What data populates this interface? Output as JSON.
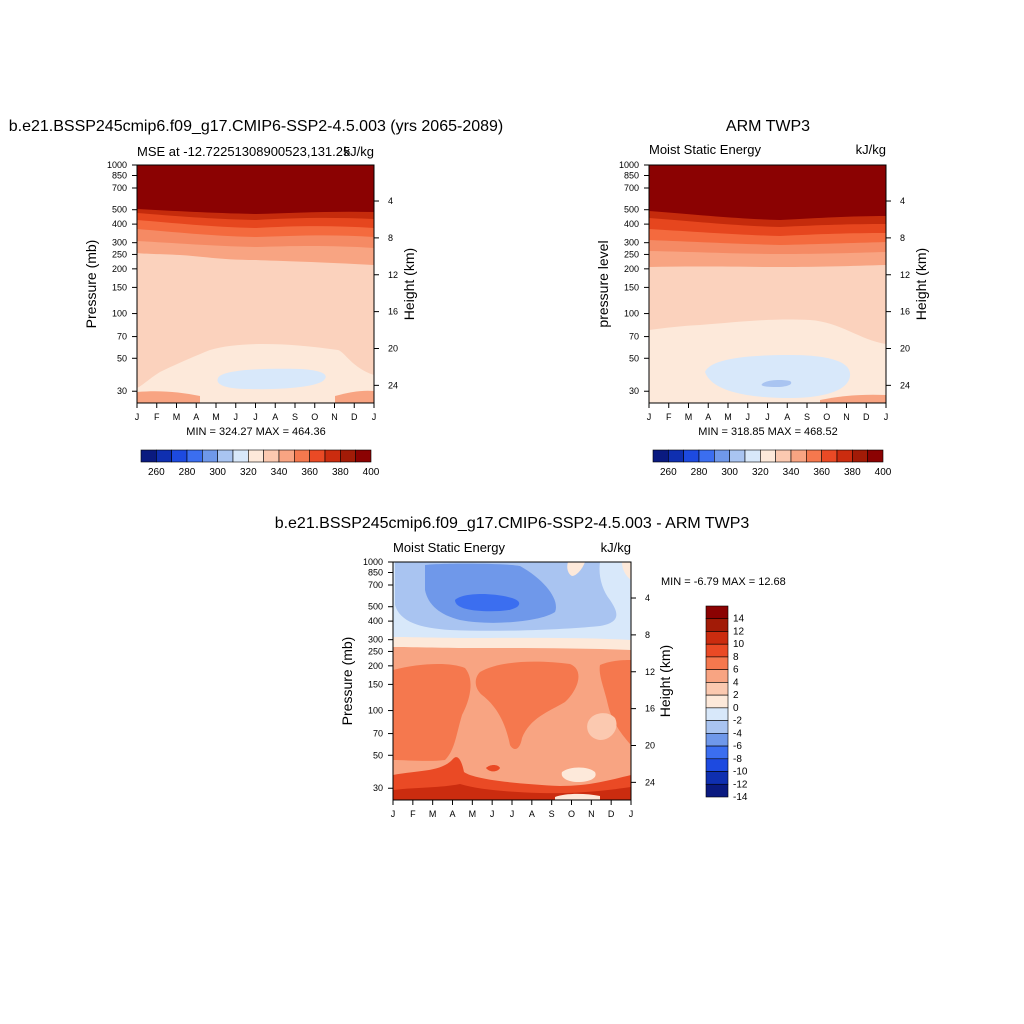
{
  "months": [
    "J",
    "F",
    "M",
    "A",
    "M",
    "J",
    "J",
    "A",
    "S",
    "O",
    "N",
    "D",
    "J"
  ],
  "pressure_ticks": [
    30,
    50,
    70,
    100,
    150,
    200,
    250,
    300,
    400,
    500,
    700,
    850,
    1000
  ],
  "height_ticks": [
    4,
    8,
    12,
    16,
    20,
    24
  ],
  "chart_data": [
    {
      "type": "heatmap",
      "title": "b.e21.BSSP245cmip6.f09_g17.CMIP6-SSP2-4.5.003 (yrs 2065-2089)",
      "left_label": "MSE at -12.72251308900523,131.25",
      "right_label": "kJ/kg",
      "ylabel": "Pressure (mb)",
      "y2label": "Height (km)",
      "ylim": [
        1000,
        25
      ],
      "stats": "MIN = 324.27 MAX = 464.36",
      "colorbar_ticks": [
        "260",
        "280",
        "300",
        "320",
        "340",
        "360",
        "380",
        "400"
      ],
      "colorbar_orientation": "horizontal"
    },
    {
      "type": "heatmap",
      "title": "ARM TWP3",
      "left_label": "Moist Static Energy",
      "right_label": "kJ/kg",
      "ylabel": "pressure level",
      "y2label": "Height (km)",
      "ylim": [
        1000,
        25
      ],
      "stats": "MIN = 318.85 MAX = 468.52",
      "colorbar_ticks": [
        "260",
        "280",
        "300",
        "320",
        "340",
        "360",
        "380",
        "400"
      ],
      "colorbar_orientation": "horizontal"
    },
    {
      "type": "heatmap",
      "title": "b.e21.BSSP245cmip6.f09_g17.CMIP6-SSP2-4.5.003 - ARM TWP3",
      "left_label": "Moist Static Energy",
      "right_label": "kJ/kg",
      "ylabel": "Pressure (mb)",
      "y2label": "Height (km)",
      "ylim": [
        1000,
        25
      ],
      "stats": "MIN =  -6.79 MAX =  12.68",
      "colorbar_ticks": [
        "14",
        "12",
        "10",
        "8",
        "6",
        "4",
        "2",
        "0",
        "-2",
        "-4",
        "-6",
        "-8",
        "-10",
        "-12",
        "-14"
      ],
      "colorbar_orientation": "vertical"
    }
  ],
  "colors": {
    "levels": [
      "#0a1a80",
      "#0f2fb0",
      "#1d4ae0",
      "#3b6ef0",
      "#6f98ea",
      "#a9c4f1",
      "#d8e8fa",
      "#fde9da",
      "#fbc9b0",
      "#f8a482",
      "#f5784e",
      "#ea4a25",
      "#cb2c0f",
      "#a21b07",
      "#8b0202"
    ]
  }
}
